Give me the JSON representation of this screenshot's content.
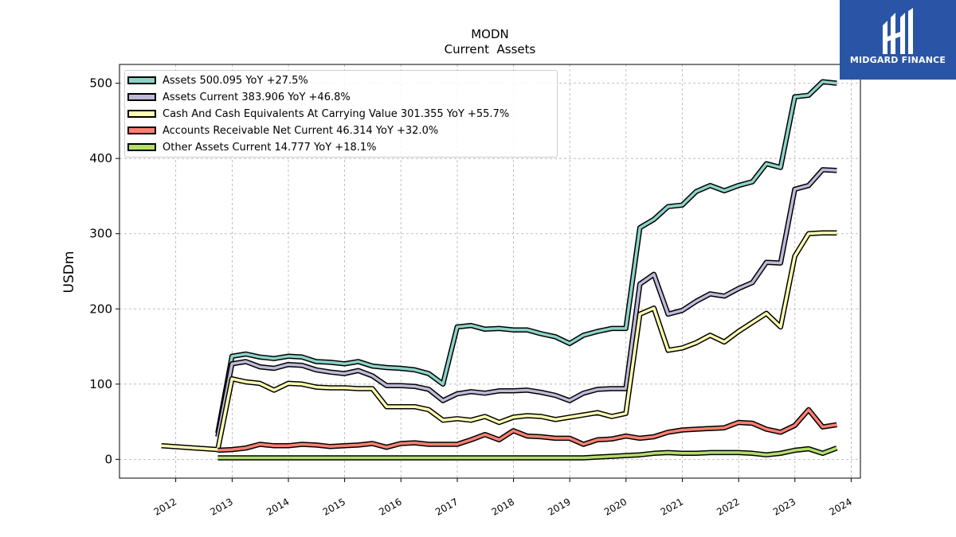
{
  "logo": {
    "text": "MIDGARD FINANCE",
    "color": "#2a55a6"
  },
  "chart_data": {
    "type": "line",
    "title": "MODN",
    "subtitle": "Current  Assets",
    "ylabel": "USDm",
    "xlabel": "",
    "ylim": [
      -25,
      525
    ],
    "xlim": [
      "2011-01-01",
      "2024-03-01"
    ],
    "yticks": [
      0,
      100,
      200,
      300,
      400,
      500
    ],
    "xticks": [
      "2012",
      "2013",
      "2014",
      "2015",
      "2016",
      "2017",
      "2018",
      "2019",
      "2020",
      "2021",
      "2022",
      "2023",
      "2024"
    ],
    "grid": true,
    "legend_position": "top-left",
    "series": [
      {
        "name": "Assets",
        "legend": "Assets  500.095 YoY +27.5%",
        "color": "#8dd3c7",
        "x": [
          "2012-09-30",
          "2012-12-31",
          "2013-03-31",
          "2013-06-30",
          "2013-09-30",
          "2013-12-31",
          "2014-03-31",
          "2014-06-30",
          "2014-09-30",
          "2014-12-31",
          "2015-03-31",
          "2015-06-30",
          "2015-09-30",
          "2015-12-31",
          "2016-03-31",
          "2016-06-30",
          "2016-09-30",
          "2016-12-31",
          "2017-03-31",
          "2017-06-30",
          "2017-09-30",
          "2017-12-31",
          "2018-03-31",
          "2018-06-30",
          "2018-09-30",
          "2018-12-31",
          "2019-03-31",
          "2019-06-30",
          "2019-09-30",
          "2019-12-31",
          "2020-03-31",
          "2020-06-30",
          "2020-09-30",
          "2020-12-31",
          "2021-03-31",
          "2021-06-30",
          "2021-09-30",
          "2021-12-31",
          "2022-03-31",
          "2022-06-30",
          "2022-09-30",
          "2022-12-31",
          "2023-03-31",
          "2023-06-30",
          "2023-09-30"
        ],
        "values": [
          35,
          137,
          140,
          136,
          134,
          137,
          136,
          130,
          129,
          127,
          130,
          124,
          122,
          121,
          119,
          114,
          100,
          176,
          178,
          173,
          174,
          172,
          172,
          167,
          163,
          154,
          165,
          170,
          174,
          174,
          308,
          319,
          336,
          338,
          356,
          364,
          357,
          364,
          369,
          393,
          388,
          482,
          484,
          502,
          500
        ]
      },
      {
        "name": "Assets Current",
        "legend": "Assets Current  383.906 YoY +46.8%",
        "color": "#bebada",
        "x": [
          "2012-09-30",
          "2012-12-31",
          "2013-03-31",
          "2013-06-30",
          "2013-09-30",
          "2013-12-31",
          "2014-03-31",
          "2014-06-30",
          "2014-09-30",
          "2014-12-31",
          "2015-03-31",
          "2015-06-30",
          "2015-09-30",
          "2015-12-31",
          "2016-03-31",
          "2016-06-30",
          "2016-09-30",
          "2016-12-31",
          "2017-03-31",
          "2017-06-30",
          "2017-09-30",
          "2017-12-31",
          "2018-03-31",
          "2018-06-30",
          "2018-09-30",
          "2018-12-31",
          "2019-03-31",
          "2019-06-30",
          "2019-09-30",
          "2019-12-31",
          "2020-03-31",
          "2020-06-30",
          "2020-09-30",
          "2020-12-31",
          "2021-03-31",
          "2021-06-30",
          "2021-09-30",
          "2021-12-31",
          "2022-03-31",
          "2022-06-30",
          "2022-09-30",
          "2022-12-31",
          "2023-03-31",
          "2023-06-30",
          "2023-09-30"
        ],
        "values": [
          30,
          127,
          130,
          123,
          121,
          126,
          125,
          119,
          116,
          114,
          118,
          111,
          98,
          98,
          97,
          93,
          78,
          87,
          90,
          88,
          91,
          91,
          92,
          89,
          85,
          78,
          88,
          93,
          94,
          94,
          233,
          246,
          193,
          198,
          210,
          220,
          217,
          227,
          235,
          262,
          261,
          359,
          364,
          385,
          384
        ]
      },
      {
        "name": "Cash And Cash Equivalents At Carrying Value",
        "legend": "Cash And Cash Equivalents At Carrying Value  301.355 YoY +55.7%",
        "color": "#ffffb3",
        "x": [
          "2011-09-30",
          "2012-09-30",
          "2012-12-31",
          "2013-03-31",
          "2013-06-30",
          "2013-09-30",
          "2013-12-31",
          "2014-03-31",
          "2014-06-30",
          "2014-09-30",
          "2014-12-31",
          "2015-03-31",
          "2015-06-30",
          "2015-09-30",
          "2015-12-31",
          "2016-03-31",
          "2016-06-30",
          "2016-09-30",
          "2016-12-31",
          "2017-03-31",
          "2017-06-30",
          "2017-09-30",
          "2017-12-31",
          "2018-03-31",
          "2018-06-30",
          "2018-09-30",
          "2018-12-31",
          "2019-03-31",
          "2019-06-30",
          "2019-09-30",
          "2019-12-31",
          "2020-03-31",
          "2020-06-30",
          "2020-09-30",
          "2020-12-31",
          "2021-03-31",
          "2021-06-30",
          "2021-09-30",
          "2021-12-31",
          "2022-03-31",
          "2022-06-30",
          "2022-09-30",
          "2022-12-31",
          "2023-03-31",
          "2023-06-30",
          "2023-09-30"
        ],
        "values": [
          18,
          13,
          107,
          103,
          101,
          92,
          101,
          100,
          96,
          95,
          95,
          94,
          94,
          70,
          70,
          70,
          66,
          52,
          54,
          52,
          57,
          49,
          56,
          58,
          57,
          53,
          56,
          59,
          62,
          57,
          61,
          193,
          201,
          145,
          148,
          155,
          165,
          156,
          170,
          182,
          194,
          176,
          270,
          300,
          301,
          301
        ]
      },
      {
        "name": "Accounts Receivable Net Current",
        "legend": "Accounts Receivable Net Current  46.314 YoY +32.0%",
        "color": "#fb8072",
        "x": [
          "2012-09-30",
          "2012-12-31",
          "2013-03-31",
          "2013-06-30",
          "2013-09-30",
          "2013-12-31",
          "2014-03-31",
          "2014-06-30",
          "2014-09-30",
          "2014-12-31",
          "2015-03-31",
          "2015-06-30",
          "2015-09-30",
          "2015-12-31",
          "2016-03-31",
          "2016-06-30",
          "2016-09-30",
          "2016-12-31",
          "2017-03-31",
          "2017-06-30",
          "2017-09-30",
          "2017-12-31",
          "2018-03-31",
          "2018-06-30",
          "2018-09-30",
          "2018-12-31",
          "2019-03-31",
          "2019-06-30",
          "2019-09-30",
          "2019-12-31",
          "2020-03-31",
          "2020-06-30",
          "2020-09-30",
          "2020-12-31",
          "2021-03-31",
          "2021-06-30",
          "2021-09-30",
          "2021-12-31",
          "2022-03-31",
          "2022-06-30",
          "2022-09-30",
          "2022-12-31",
          "2023-03-31",
          "2023-06-30",
          "2023-09-30"
        ],
        "values": [
          12,
          13,
          15,
          20,
          18,
          18,
          20,
          19,
          17,
          18,
          19,
          21,
          16,
          21,
          22,
          20,
          20,
          20,
          26,
          33,
          26,
          38,
          31,
          30,
          28,
          28,
          20,
          26,
          27,
          31,
          28,
          30,
          36,
          39,
          40,
          41,
          42,
          49,
          48,
          40,
          36,
          45,
          66,
          43,
          46
        ]
      },
      {
        "name": "Other Assets Current",
        "legend": "Other Assets Current  14.777 YoY +18.1%",
        "color": "#b3de69",
        "x": [
          "2012-09-30",
          "2012-12-31",
          "2013-03-31",
          "2013-06-30",
          "2013-09-30",
          "2013-12-31",
          "2014-03-31",
          "2014-06-30",
          "2014-09-30",
          "2014-12-31",
          "2015-03-31",
          "2015-06-30",
          "2015-09-30",
          "2015-12-31",
          "2016-03-31",
          "2016-06-30",
          "2016-09-30",
          "2016-12-31",
          "2017-03-31",
          "2017-06-30",
          "2017-09-30",
          "2017-12-31",
          "2018-03-31",
          "2018-06-30",
          "2018-09-30",
          "2018-12-31",
          "2019-03-31",
          "2019-06-30",
          "2019-09-30",
          "2019-12-31",
          "2020-03-31",
          "2020-06-30",
          "2020-09-30",
          "2020-12-31",
          "2021-03-31",
          "2021-06-30",
          "2021-09-30",
          "2021-12-31",
          "2022-03-31",
          "2022-06-30",
          "2022-09-30",
          "2022-12-31",
          "2023-03-31",
          "2023-06-30",
          "2023-09-30"
        ],
        "values": [
          2,
          2,
          2,
          2,
          2,
          2,
          2,
          2,
          2,
          2,
          2,
          2,
          2,
          2,
          2,
          2,
          2,
          2,
          2,
          2,
          2,
          2,
          2,
          2,
          2,
          2,
          2,
          3,
          4,
          5,
          6,
          8,
          9,
          8,
          8,
          9,
          9,
          9,
          8,
          6,
          8,
          12,
          14,
          8,
          15
        ]
      }
    ]
  }
}
